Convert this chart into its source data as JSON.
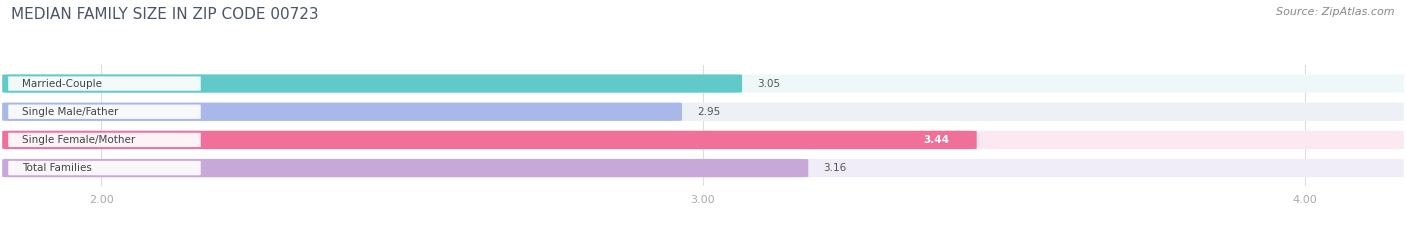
{
  "title": "MEDIAN FAMILY SIZE IN ZIP CODE 00723",
  "source": "Source: ZipAtlas.com",
  "categories": [
    "Married-Couple",
    "Single Male/Father",
    "Single Female/Mother",
    "Total Families"
  ],
  "values": [
    3.05,
    2.95,
    3.44,
    3.16
  ],
  "bar_colors": [
    "#62c9c9",
    "#a8b8e8",
    "#f0709a",
    "#c8a8d8"
  ],
  "bar_bg_colors": [
    "#eff8f8",
    "#eef0f8",
    "#fce8f0",
    "#f0edf8"
  ],
  "xlim": [
    1.85,
    4.15
  ],
  "xticks": [
    2.0,
    3.0,
    4.0
  ],
  "xtick_labels": [
    "2.00",
    "3.00",
    "4.00"
  ],
  "bar_height": 0.62,
  "label_fontsize": 7.5,
  "value_fontsize": 7.5,
  "title_fontsize": 11,
  "source_fontsize": 8,
  "label_color": "#444444",
  "value_color": "#555555",
  "title_color": "#4a5568",
  "source_color": "#888888",
  "background_color": "#ffffff",
  "tick_color": "#aaaaaa",
  "grid_color": "#dddddd"
}
